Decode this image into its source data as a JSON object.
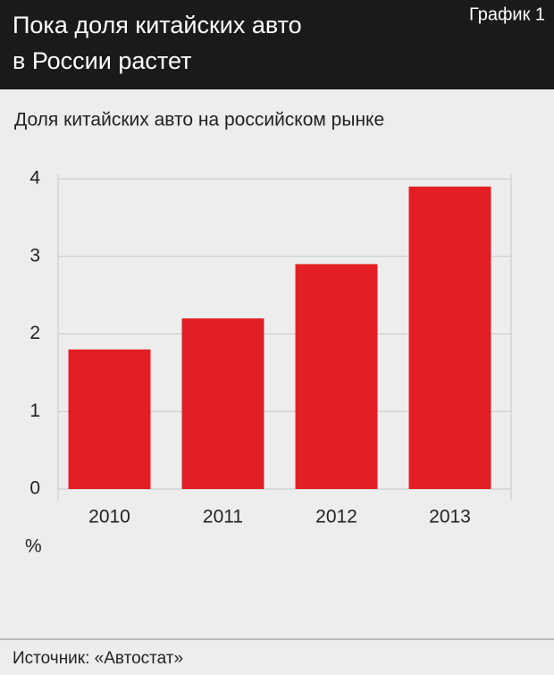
{
  "chart_data": {
    "type": "bar",
    "title": [
      "Пока доля китайских авто",
      "в России растет"
    ],
    "label": "График 1",
    "subtitle": "Доля китайских авто на российском рынке",
    "y_axis_label": "%",
    "source": "Источник: «Автостат»",
    "categories": [
      "2010",
      "2011",
      "2012",
      "2013"
    ],
    "values": [
      1.8,
      2.2,
      2.9,
      3.9
    ],
    "color": "#e31e24",
    "ylim": [
      0,
      4
    ],
    "yticks": [
      0,
      1,
      2,
      3,
      4
    ],
    "grid": true
  }
}
